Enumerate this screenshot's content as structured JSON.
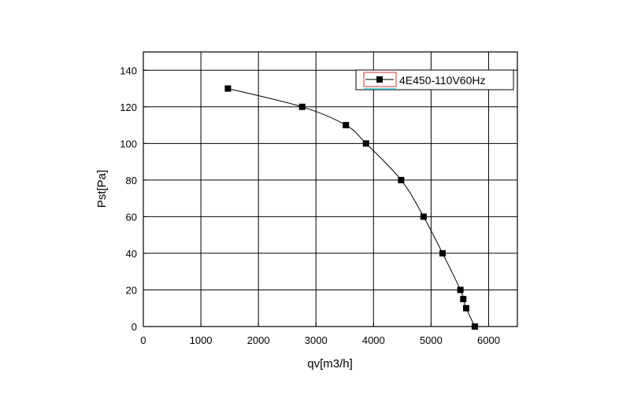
{
  "chart_data": {
    "type": "line",
    "title": "",
    "xlabel": "qv[m3/h]",
    "ylabel": "Pst[Pa]",
    "xlim": [
      0,
      6500
    ],
    "ylim": [
      0,
      150
    ],
    "xticks": [
      0,
      1000,
      2000,
      3000,
      4000,
      5000,
      6000
    ],
    "yticks": [
      0,
      20,
      40,
      60,
      80,
      100,
      120,
      140
    ],
    "grid": true,
    "legend_position": "top-right",
    "series": [
      {
        "name": "4E450-110V60Hz",
        "color": "#000000",
        "marker": "square",
        "x": [
          1470,
          2760,
          3520,
          3870,
          4480,
          4870,
          5200,
          5510,
          5560,
          5610,
          5760
        ],
        "y": [
          130,
          120,
          110,
          100,
          80,
          60,
          40,
          20,
          15,
          10,
          0
        ]
      }
    ]
  }
}
